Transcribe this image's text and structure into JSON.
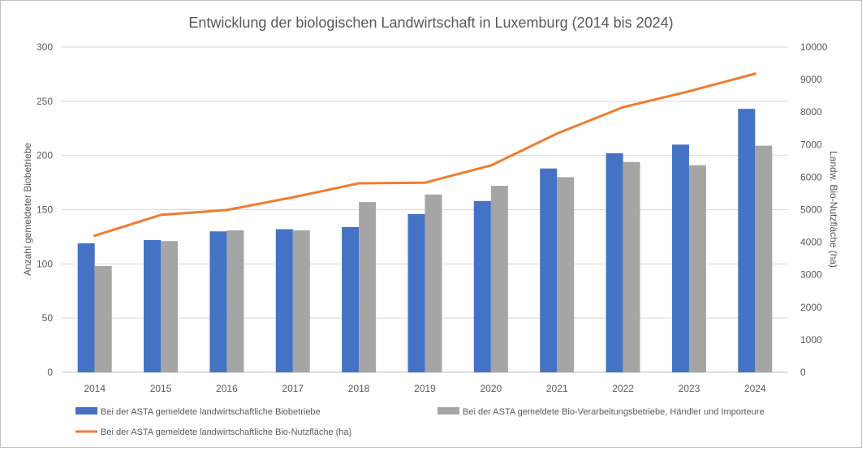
{
  "chart_data": {
    "type": "bar",
    "title": "Entwicklung der biologischen Landwirtschaft in Luxemburg  (2014 bis 2024)",
    "categories": [
      "2014",
      "2015",
      "2016",
      "2017",
      "2018",
      "2019",
      "2020",
      "2021",
      "2022",
      "2023",
      "2024"
    ],
    "ylabel": "Anzahl gemeldeter Biobetriebe",
    "y2label": "Landw. Bio-Nutzfläche (ha)",
    "ylim": [
      0,
      300
    ],
    "y2lim": [
      0,
      10000
    ],
    "yticks": [
      "0",
      "50",
      "100",
      "150",
      "200",
      "250",
      "300"
    ],
    "y2ticks": [
      "0",
      "1000",
      "2000",
      "3000",
      "4000",
      "5000",
      "6000",
      "7000",
      "8000",
      "9000",
      "10000"
    ],
    "grid": true,
    "legend_position": "bottom",
    "series": [
      {
        "name": "Bei der ASTA gemeldete landwirtschaftliche Biobetriebe",
        "type": "bar",
        "axis": "left",
        "color": "#4472c4",
        "values": [
          119,
          122,
          130,
          132,
          134,
          146,
          158,
          188,
          202,
          210,
          243
        ]
      },
      {
        "name": "Bei der ASTA gemeldete Bio-Verarbeitungsbetriebe, Händler und Importeure",
        "type": "bar",
        "axis": "left",
        "color": "#a5a5a5",
        "values": [
          98,
          121,
          131,
          131,
          157,
          164,
          172,
          180,
          194,
          191,
          209
        ]
      },
      {
        "name": "Bei der ASTA gemeldete landwirtschaftliche Bio-Nutzfläche (ha)",
        "type": "line",
        "axis": "right",
        "color": "#ed7d31",
        "values": [
          4200,
          4840,
          4990,
          5380,
          5810,
          5830,
          6360,
          7340,
          8150,
          8640,
          9180
        ]
      }
    ]
  }
}
